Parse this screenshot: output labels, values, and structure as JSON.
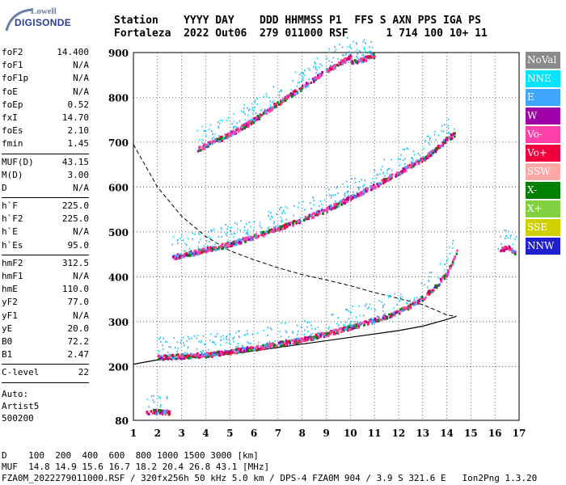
{
  "logo": {
    "line1": "Lowell",
    "line2": "DIGISONDE"
  },
  "header": {
    "row1": "Station    YYYY DAY    DDD HHMMSS P1  FFS S AXN PPS IGA PS",
    "row2": "Fortaleza  2022 Out06  279 011000 RSF      1 714 100 10+ 11"
  },
  "params": [
    [
      {
        "k": "foF2",
        "v": "14.400"
      },
      {
        "k": "foF1",
        "v": "N/A"
      },
      {
        "k": "foF1p",
        "v": "N/A"
      },
      {
        "k": "foE",
        "v": "N/A"
      },
      {
        "k": "foEp",
        "v": "0.52"
      },
      {
        "k": "fxI",
        "v": "14.70"
      },
      {
        "k": "foEs",
        "v": "2.10"
      },
      {
        "k": "fmin",
        "v": "1.45"
      }
    ],
    [
      {
        "k": "MUF(D)",
        "v": "43.15"
      },
      {
        "k": "M(D)",
        "v": "3.00"
      },
      {
        "k": "D",
        "v": "N/A"
      }
    ],
    [
      {
        "k": "h`F",
        "v": "225.0"
      },
      {
        "k": "h`F2",
        "v": "225.0"
      },
      {
        "k": "h`E",
        "v": "N/A"
      },
      {
        "k": "h`Es",
        "v": "95.0"
      }
    ],
    [
      {
        "k": "hmF2",
        "v": "312.5"
      },
      {
        "k": "hmF1",
        "v": "N/A"
      },
      {
        "k": "hmE",
        "v": "110.0"
      },
      {
        "k": "yF2",
        "v": "77.0"
      },
      {
        "k": "yF1",
        "v": "N/A"
      },
      {
        "k": "yE",
        "v": "20.0"
      },
      {
        "k": "B0",
        "v": "72.2"
      },
      {
        "k": "B1",
        "v": "2.47"
      }
    ],
    [
      {
        "k": "C-level",
        "v": "22"
      }
    ]
  ],
  "auto": [
    "Auto:",
    "Artist5",
    "500200"
  ],
  "legend": [
    {
      "label": "NoVal",
      "color": "#8a8a8a"
    },
    {
      "label": "NNE",
      "color": "#00e5ff"
    },
    {
      "label": "E",
      "color": "#3fa6ff"
    },
    {
      "label": "W",
      "color": "#a000a8"
    },
    {
      "label": "Vo-",
      "color": "#ff40a8"
    },
    {
      "label": "Vo+",
      "color": "#f0003c"
    },
    {
      "label": "SSW",
      "color": "#ffa8a8"
    },
    {
      "label": "X-",
      "color": "#008000"
    },
    {
      "label": "X+",
      "color": "#80d040"
    },
    {
      "label": "SSE",
      "color": "#d0d000"
    },
    {
      "label": "NNW",
      "color": "#2020d0"
    }
  ],
  "footer": {
    "line1": "D    100  200  400  600  800 1000 1500 3000 [km]",
    "line2": "MUF  14.8 14.9 15.6 16.7 18.2 20.4 26.8 43.1 [MHz]",
    "line3": "FZA0M_2022279011000.RSF / 320fx256h 50 kHz 5.0 km / DPS-4 FZA0M 904 / 3.9 S 321.6 E   Ion2Png 1.3.20"
  },
  "chart_data": {
    "type": "scatter",
    "title": "",
    "xlabel": "",
    "ylabel": "",
    "xlim": [
      1,
      17
    ],
    "ylim": [
      80,
      900
    ],
    "xticks": [
      1,
      2,
      3,
      4,
      5,
      6,
      7,
      8,
      9,
      10,
      11,
      12,
      13,
      14,
      15,
      16,
      17
    ],
    "yticks": [
      80,
      200,
      300,
      400,
      500,
      600,
      700,
      800,
      900
    ],
    "grid": true,
    "traces": [
      {
        "name": "O-trace",
        "points": [
          [
            2.0,
            222
          ],
          [
            3,
            225
          ],
          [
            4,
            228
          ],
          [
            5,
            235
          ],
          [
            6,
            243
          ],
          [
            7,
            252
          ],
          [
            8,
            262
          ],
          [
            9,
            275
          ],
          [
            10,
            290
          ],
          [
            11,
            305
          ],
          [
            12,
            325
          ],
          [
            12.5,
            338
          ],
          [
            13,
            355
          ],
          [
            13.5,
            380
          ],
          [
            14,
            410
          ],
          [
            14.3,
            445
          ],
          [
            14.4,
            460
          ]
        ]
      },
      {
        "name": "O-2F",
        "points": [
          [
            2.6,
            445
          ],
          [
            3,
            450
          ],
          [
            4,
            462
          ],
          [
            5,
            475
          ],
          [
            6,
            492
          ],
          [
            7,
            510
          ],
          [
            8,
            530
          ],
          [
            9,
            552
          ],
          [
            10,
            578
          ],
          [
            11,
            605
          ],
          [
            12,
            635
          ],
          [
            13,
            665
          ],
          [
            13.5,
            685
          ],
          [
            14,
            710
          ],
          [
            14.3,
            720
          ]
        ]
      },
      {
        "name": "O-3F",
        "points": [
          [
            3.6,
            685
          ],
          [
            4,
            695
          ],
          [
            5,
            720
          ],
          [
            6,
            752
          ],
          [
            7,
            790
          ],
          [
            8,
            825
          ],
          [
            9,
            862
          ],
          [
            10,
            893
          ]
        ]
      },
      {
        "name": "O-4F",
        "points": [
          [
            10,
            880
          ],
          [
            11,
            895
          ]
        ]
      },
      {
        "name": "Es",
        "points": [
          [
            1.5,
            100
          ],
          [
            2,
            102
          ],
          [
            2.5,
            100
          ]
        ]
      },
      {
        "name": "X-spread",
        "points": [
          [
            16.2,
            462
          ],
          [
            16.5,
            468
          ],
          [
            16.8,
            458
          ]
        ]
      }
    ],
    "profile_dashed": [
      [
        1,
        695
      ],
      [
        2,
        600
      ],
      [
        3,
        535
      ],
      [
        4,
        490
      ],
      [
        5,
        458
      ],
      [
        6,
        438
      ],
      [
        7,
        420
      ],
      [
        8,
        405
      ],
      [
        9,
        393
      ],
      [
        10,
        380
      ],
      [
        11,
        365
      ],
      [
        12,
        352
      ],
      [
        13,
        338
      ],
      [
        14,
        315
      ],
      [
        14.4,
        312
      ]
    ],
    "profile_solid": [
      [
        1,
        205
      ],
      [
        2,
        215
      ],
      [
        4,
        222
      ],
      [
        6,
        235
      ],
      [
        8,
        250
      ],
      [
        10,
        265
      ],
      [
        12,
        280
      ],
      [
        13,
        290
      ],
      [
        14,
        305
      ],
      [
        14.4,
        312
      ]
    ]
  }
}
